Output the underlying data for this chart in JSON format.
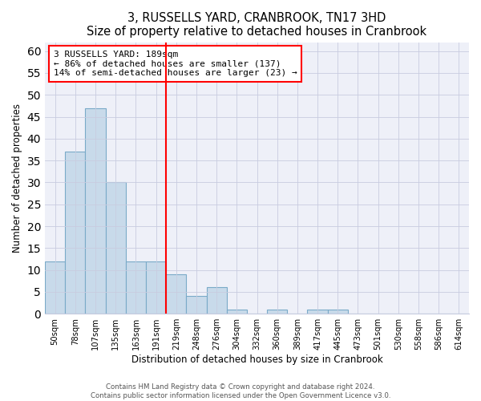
{
  "title": "3, RUSSELLS YARD, CRANBROOK, TN17 3HD",
  "subtitle": "Size of property relative to detached houses in Cranbrook",
  "xlabel": "Distribution of detached houses by size in Cranbrook",
  "ylabel": "Number of detached properties",
  "bar_color": "#c8daea",
  "bar_edge_color": "#7aaac8",
  "categories": [
    "50sqm",
    "78sqm",
    "107sqm",
    "135sqm",
    "163sqm",
    "191sqm",
    "219sqm",
    "248sqm",
    "276sqm",
    "304sqm",
    "332sqm",
    "360sqm",
    "389sqm",
    "417sqm",
    "445sqm",
    "473sqm",
    "501sqm",
    "530sqm",
    "558sqm",
    "586sqm",
    "614sqm"
  ],
  "values": [
    12,
    37,
    47,
    30,
    12,
    12,
    9,
    4,
    6,
    1,
    0,
    1,
    0,
    1,
    1,
    0,
    0,
    0,
    0,
    0,
    0
  ],
  "subject_bin_index": 5,
  "annotation_line1": "3 RUSSELLS YARD: 189sqm",
  "annotation_line2": "← 86% of detached houses are smaller (137)",
  "annotation_line3": "14% of semi-detached houses are larger (23) →",
  "ylim": [
    0,
    62
  ],
  "yticks": [
    0,
    5,
    10,
    15,
    20,
    25,
    30,
    35,
    40,
    45,
    50,
    55,
    60
  ],
  "footer1": "Contains HM Land Registry data © Crown copyright and database right 2024.",
  "footer2": "Contains public sector information licensed under the Open Government Licence v3.0.",
  "fig_width": 6.0,
  "fig_height": 5.0,
  "bg_color": "#eef0f8"
}
